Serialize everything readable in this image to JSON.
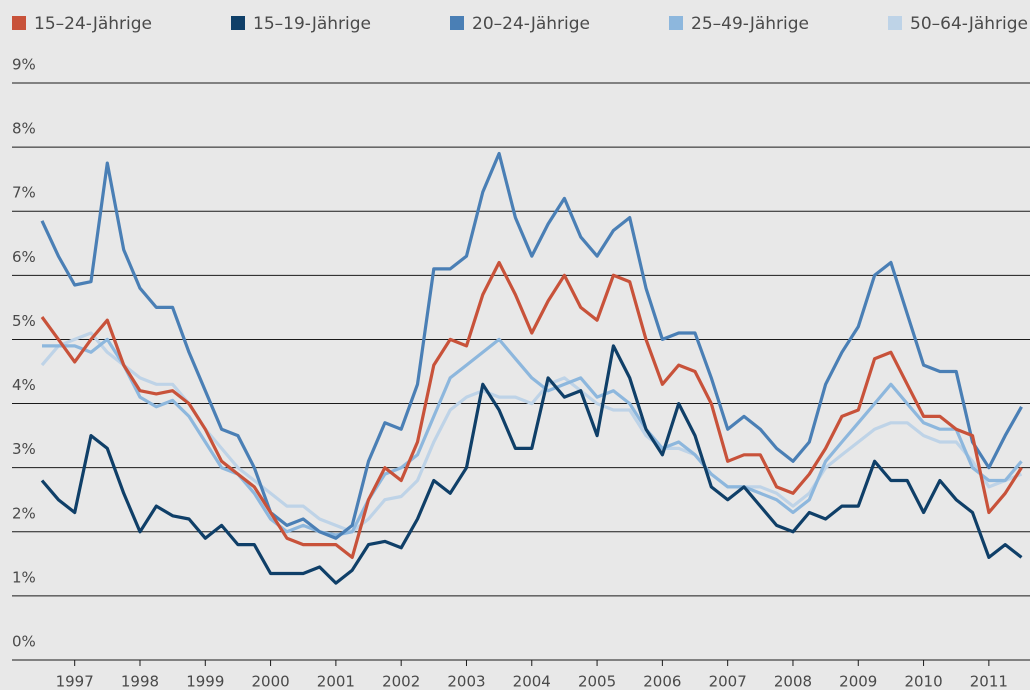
{
  "chart_data": {
    "type": "line",
    "x": [
      1997,
      1997.25,
      1997.5,
      1997.75,
      1998,
      1998.25,
      1998.5,
      1998.75,
      1999,
      1999.25,
      1999.5,
      1999.75,
      2000,
      2000.25,
      2000.5,
      2000.75,
      2001,
      2001.25,
      2001.5,
      2001.75,
      2002,
      2002.25,
      2002.5,
      2002.75,
      2003,
      2003.25,
      2003.5,
      2003.75,
      2004,
      2004.25,
      2004.5,
      2004.75,
      2005,
      2005.25,
      2005.5,
      2005.75,
      2006,
      2006.25,
      2006.5,
      2006.75,
      2007,
      2007.25,
      2007.5,
      2007.75,
      2008,
      2008.25,
      2008.5,
      2008.75,
      2009,
      2009.25,
      2009.5,
      2009.75,
      2010,
      2010.25,
      2010.5,
      2010.75,
      2011,
      2011.25,
      2011.5,
      2011.75,
      2012
    ],
    "series": [
      {
        "name": "15–24-Jährige",
        "color": "#c8523a",
        "values": [
          5.35,
          5.0,
          4.65,
          5.0,
          5.3,
          4.6,
          4.2,
          4.15,
          4.2,
          4.0,
          3.6,
          3.1,
          2.9,
          2.7,
          2.3,
          1.9,
          1.8,
          1.8,
          1.8,
          1.6,
          2.5,
          3.0,
          2.8,
          3.4,
          4.6,
          5.0,
          4.9,
          5.7,
          6.2,
          5.7,
          5.1,
          5.6,
          6.0,
          5.5,
          5.3,
          6.0,
          5.9,
          5.0,
          4.3,
          4.6,
          4.5,
          4.0,
          3.1,
          3.2,
          3.2,
          2.7,
          2.6,
          2.9,
          3.3,
          3.8,
          3.9,
          4.7,
          4.8,
          4.3,
          3.8,
          3.8,
          3.6,
          3.5,
          2.3,
          2.6,
          3.0
        ]
      },
      {
        "name": "15–19-Jährige",
        "color": "#0f3f68",
        "values": [
          2.8,
          2.5,
          2.3,
          3.5,
          3.3,
          2.6,
          2.0,
          2.4,
          2.25,
          2.2,
          1.9,
          2.1,
          1.8,
          1.8,
          1.35,
          1.35,
          1.35,
          1.45,
          1.2,
          1.4,
          1.8,
          1.85,
          1.75,
          2.2,
          2.8,
          2.6,
          3.0,
          4.3,
          3.9,
          3.3,
          3.3,
          4.4,
          4.1,
          4.2,
          3.5,
          4.9,
          4.4,
          3.6,
          3.2,
          4.0,
          3.5,
          2.7,
          2.5,
          2.7,
          2.4,
          2.1,
          2.0,
          2.3,
          2.2,
          2.4,
          2.4,
          3.1,
          2.8,
          2.8,
          2.3,
          2.8,
          2.5,
          2.3,
          1.6,
          1.8,
          1.6
        ]
      },
      {
        "name": "20–24-Jährige",
        "color": "#4a7fb5",
        "values": [
          6.85,
          6.3,
          5.85,
          5.9,
          7.75,
          6.4,
          5.8,
          5.5,
          5.5,
          4.8,
          4.2,
          3.6,
          3.5,
          3.0,
          2.3,
          2.1,
          2.2,
          2.0,
          1.9,
          2.1,
          3.1,
          3.7,
          3.6,
          4.3,
          6.1,
          6.1,
          6.3,
          7.3,
          7.9,
          6.9,
          6.3,
          6.8,
          7.2,
          6.6,
          6.3,
          6.7,
          6.9,
          5.8,
          5.0,
          5.1,
          5.1,
          4.4,
          3.6,
          3.8,
          3.6,
          3.3,
          3.1,
          3.4,
          4.3,
          4.8,
          5.2,
          6.0,
          6.2,
          5.4,
          4.6,
          4.5,
          4.5,
          3.4,
          3.0,
          3.5,
          3.95
        ]
      },
      {
        "name": "25–49-Jährige",
        "color": "#8db7dd",
        "values": [
          4.9,
          4.9,
          4.9,
          4.8,
          5.0,
          4.6,
          4.1,
          3.95,
          4.05,
          3.8,
          3.4,
          3.0,
          2.9,
          2.6,
          2.2,
          2.0,
          2.1,
          2.0,
          1.95,
          2.0,
          2.5,
          2.9,
          3.0,
          3.2,
          3.8,
          4.4,
          4.6,
          4.8,
          5.0,
          4.7,
          4.4,
          4.2,
          4.3,
          4.4,
          4.1,
          4.2,
          4.0,
          3.6,
          3.3,
          3.4,
          3.2,
          2.9,
          2.7,
          2.7,
          2.6,
          2.5,
          2.3,
          2.5,
          3.1,
          3.4,
          3.7,
          4.0,
          4.3,
          4.0,
          3.7,
          3.6,
          3.6,
          3.0,
          2.8,
          2.8,
          3.1
        ]
      },
      {
        "name": "50–64-Jährige",
        "color": "#bed3e7",
        "values": [
          4.6,
          4.9,
          5.0,
          5.1,
          4.8,
          4.6,
          4.4,
          4.3,
          4.3,
          4.0,
          3.6,
          3.3,
          3.0,
          2.8,
          2.6,
          2.4,
          2.4,
          2.2,
          2.1,
          2.0,
          2.2,
          2.5,
          2.55,
          2.8,
          3.4,
          3.9,
          4.1,
          4.2,
          4.1,
          4.1,
          4.0,
          4.3,
          4.4,
          4.2,
          4.0,
          3.9,
          3.9,
          3.5,
          3.3,
          3.3,
          3.2,
          2.9,
          2.7,
          2.7,
          2.7,
          2.6,
          2.4,
          2.6,
          3.0,
          3.2,
          3.4,
          3.6,
          3.7,
          3.7,
          3.5,
          3.4,
          3.4,
          3.1,
          2.7,
          2.8,
          2.9
        ]
      }
    ],
    "xlim": [
      1996.54,
      2012.13
    ],
    "xticks": [
      {
        "value": 1997.5,
        "label": "1997"
      },
      {
        "value": 1998.5,
        "label": "1998"
      },
      {
        "value": 1999.5,
        "label": "1999"
      },
      {
        "value": 2000.5,
        "label": "2000"
      },
      {
        "value": 2001.5,
        "label": "2001"
      },
      {
        "value": 2002.5,
        "label": "2002"
      },
      {
        "value": 2003.5,
        "label": "2003"
      },
      {
        "value": 2004.5,
        "label": "2004"
      },
      {
        "value": 2005.5,
        "label": "2005"
      },
      {
        "value": 2006.5,
        "label": "2006"
      },
      {
        "value": 2007.5,
        "label": "2007"
      },
      {
        "value": 2008.5,
        "label": "2008"
      },
      {
        "value": 2009.5,
        "label": "2009"
      },
      {
        "value": 2010.5,
        "label": "2010"
      },
      {
        "value": 2011.5,
        "label": "2011"
      }
    ],
    "ylim": [
      0,
      9
    ],
    "yticks": [
      {
        "value": 0,
        "label": "0%"
      },
      {
        "value": 1,
        "label": "1%"
      },
      {
        "value": 2,
        "label": "2%"
      },
      {
        "value": 3,
        "label": "3%"
      },
      {
        "value": 4,
        "label": "4%"
      },
      {
        "value": 5,
        "label": "5%"
      },
      {
        "value": 6,
        "label": "6%"
      },
      {
        "value": 7,
        "label": "7%"
      },
      {
        "value": 8,
        "label": "8%"
      },
      {
        "value": 9,
        "label": "9%"
      }
    ],
    "grid": true
  }
}
